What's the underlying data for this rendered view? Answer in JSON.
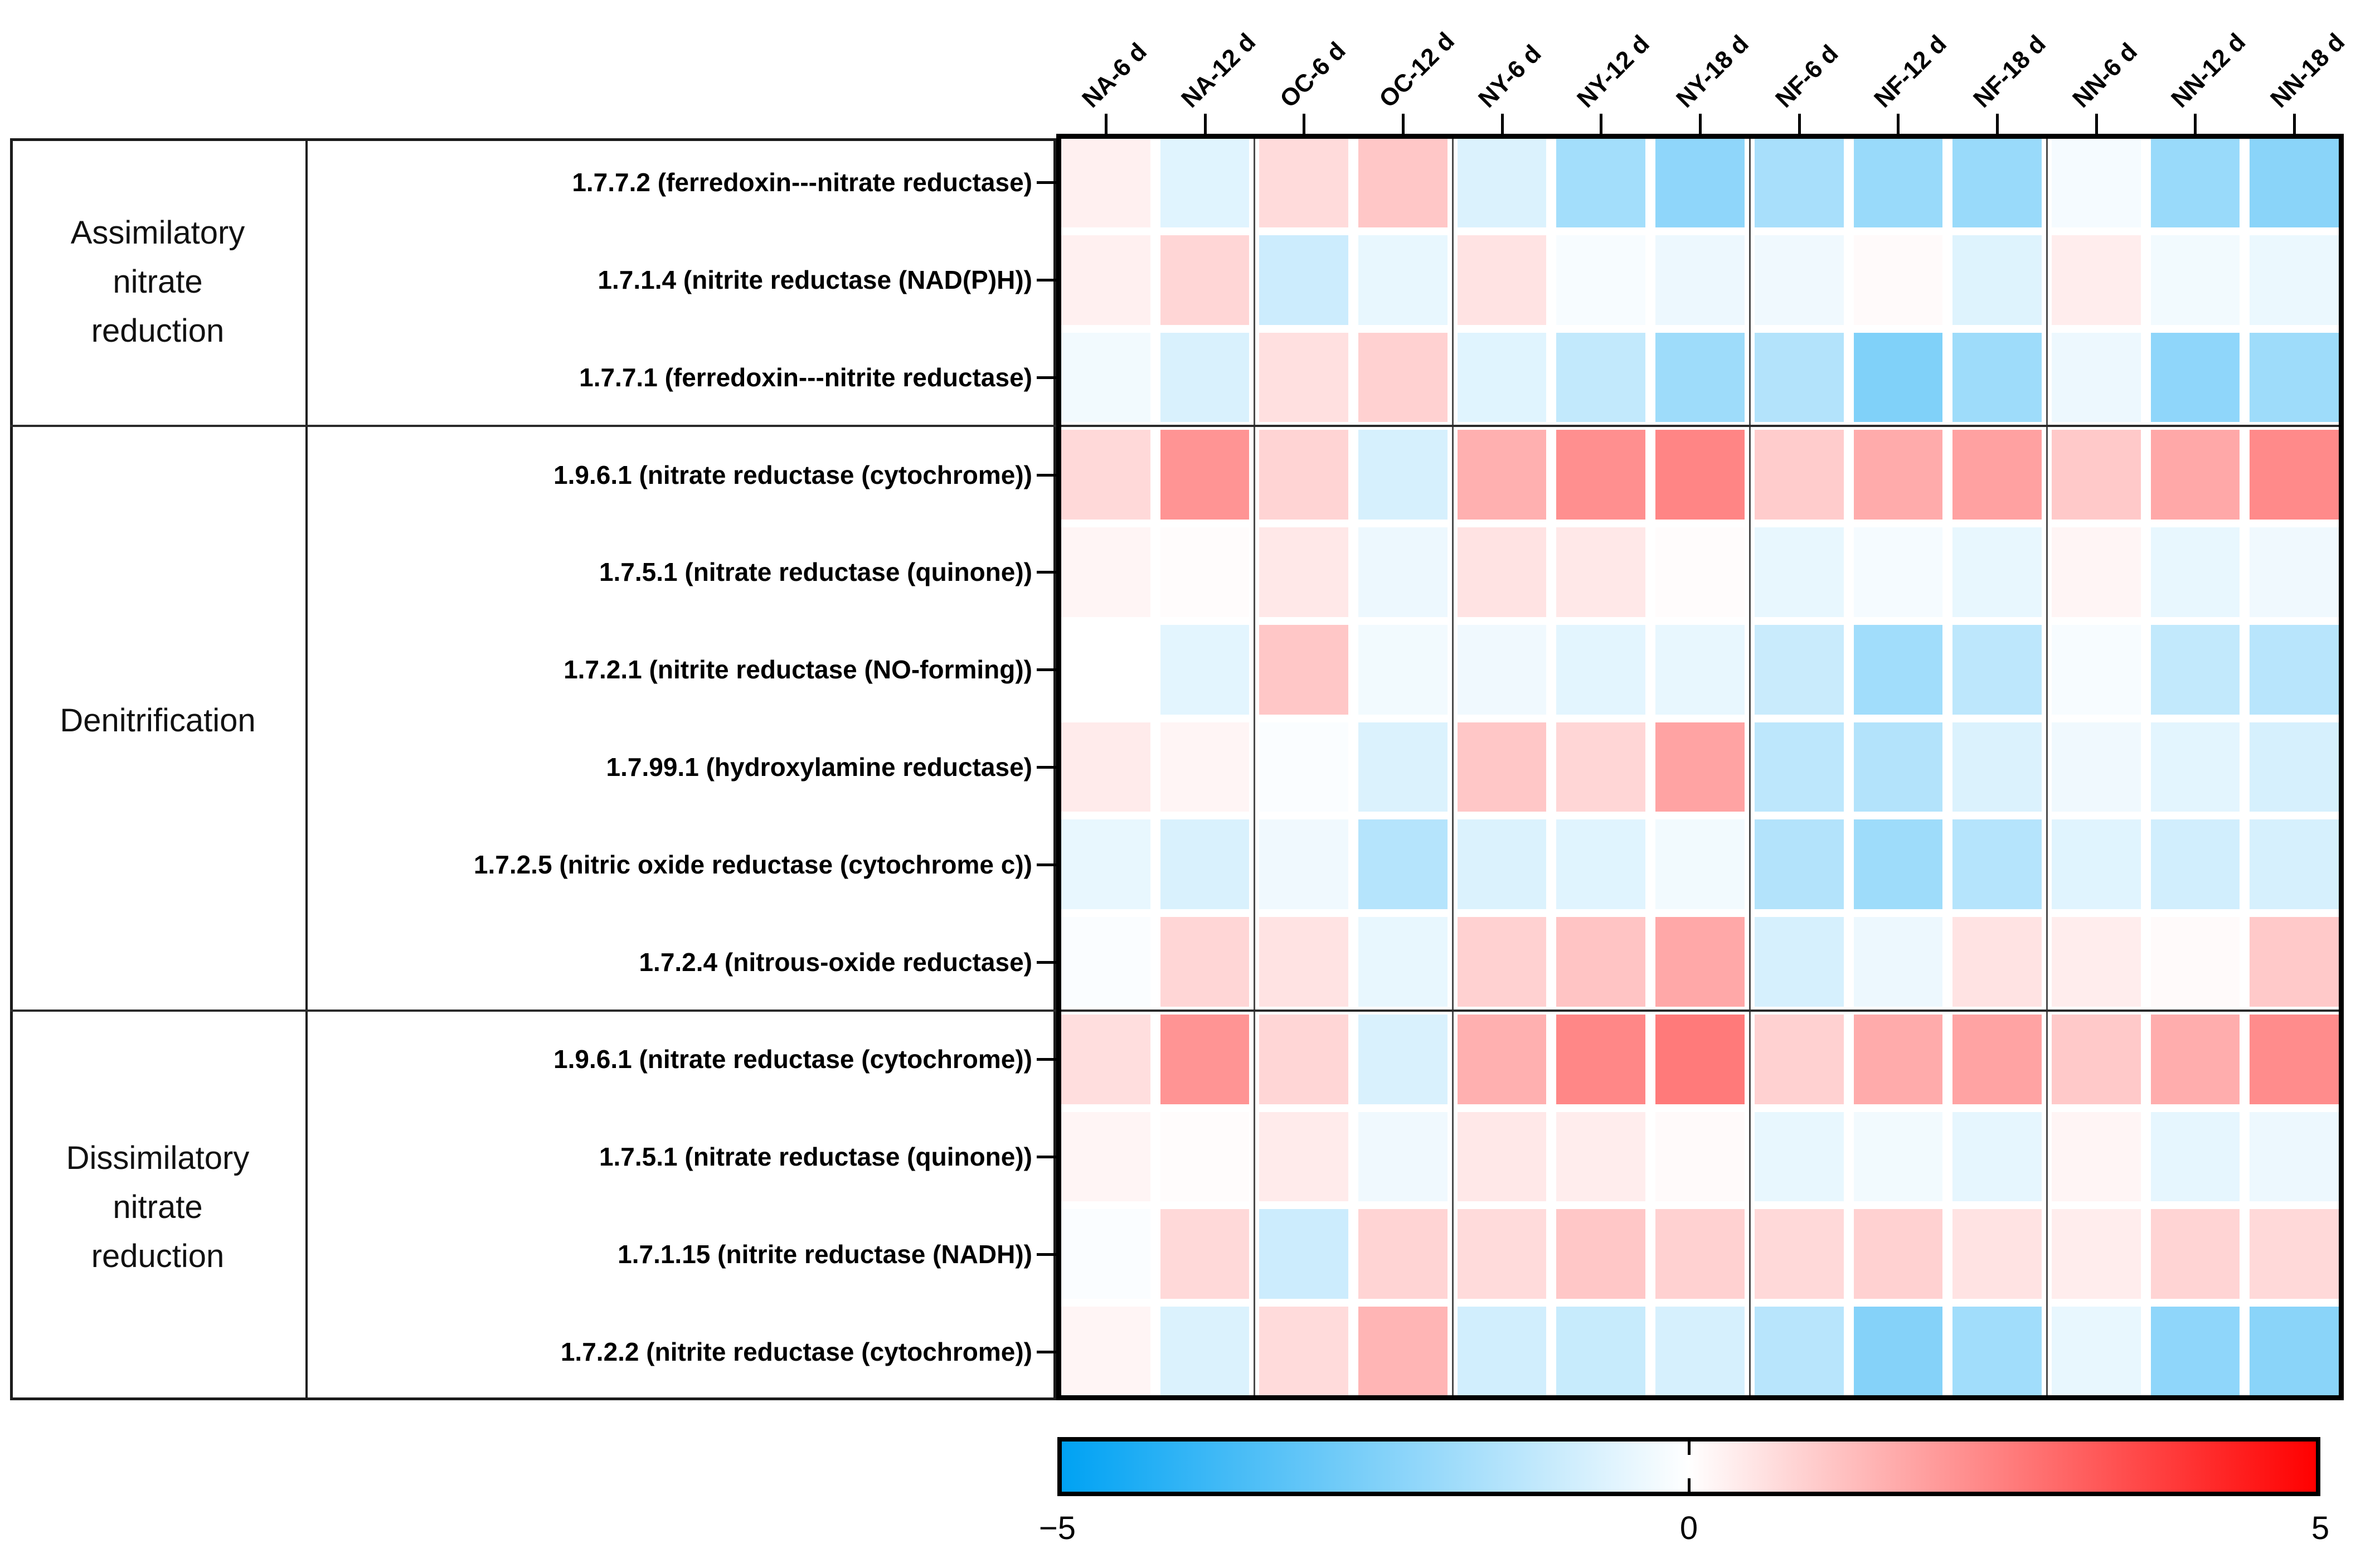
{
  "chart_data": {
    "type": "heatmap",
    "title": "",
    "columns": [
      "NA-6 d",
      "NA-12 d",
      "OC-6 d",
      "OC-12 d",
      "NY-6 d",
      "NY-12 d",
      "NY-18 d",
      "NF-6 d",
      "NF-12 d",
      "NF-18 d",
      "NN-6 d",
      "NN-12 d",
      "NN-18 d"
    ],
    "column_group_separators_after": [
      2,
      4,
      7,
      10
    ],
    "row_groups": [
      {
        "label": "Assimilatory nitrate reduction",
        "rows": [
          {
            "label": "1.7.7.2 (ferredoxin---nitrate reductase)",
            "values": [
              0.3,
              -0.6,
              0.7,
              1.1,
              -0.7,
              -1.8,
              -2.2,
              -1.7,
              -2.0,
              -2.0,
              -0.2,
              -2.0,
              -2.3
            ]
          },
          {
            "label": "1.7.1.4 (nitrite reductase (NAD(P)H))",
            "values": [
              0.3,
              0.8,
              -1.0,
              -0.45,
              0.55,
              -0.15,
              -0.35,
              -0.3,
              0.1,
              -0.65,
              0.35,
              -0.25,
              -0.4
            ]
          },
          {
            "label": "1.7.7.1 (ferredoxin---nitrite reductase)",
            "values": [
              -0.25,
              -0.75,
              0.6,
              0.9,
              -0.6,
              -1.2,
              -1.9,
              -1.5,
              -2.5,
              -1.9,
              -0.35,
              -2.2,
              -1.9
            ]
          }
        ]
      },
      {
        "label": "Denitrification",
        "rows": [
          {
            "label": "1.9.6.1 (nitrate reductase (cytochrome))",
            "values": [
              0.75,
              2.1,
              0.85,
              -0.8,
              1.55,
              2.2,
              2.4,
              1.0,
              1.65,
              1.85,
              1.05,
              1.7,
              2.3
            ]
          },
          {
            "label": "1.7.5.1 (nitrate reductase (quinone))",
            "values": [
              0.2,
              0.05,
              0.45,
              -0.35,
              0.55,
              0.45,
              0.05,
              -0.45,
              -0.2,
              -0.45,
              0.2,
              -0.45,
              -0.3
            ]
          },
          {
            "label": "1.7.2.1 (nitrite reductase (NO-forming))",
            "values": [
              0.0,
              -0.55,
              1.1,
              -0.25,
              -0.3,
              -0.55,
              -0.45,
              -1.05,
              -1.85,
              -1.3,
              -0.15,
              -1.2,
              -1.4
            ]
          },
          {
            "label": "1.7.99.1 (hydroxylamine reductase)",
            "values": [
              0.4,
              0.2,
              -0.1,
              -0.7,
              1.1,
              0.8,
              1.8,
              -1.3,
              -1.5,
              -0.7,
              -0.3,
              -0.55,
              -0.8
            ]
          },
          {
            "label": "1.7.2.5 (nitric oxide reductase (cytochrome c))",
            "values": [
              -0.45,
              -0.75,
              -0.3,
              -1.45,
              -0.7,
              -0.6,
              -0.25,
              -1.5,
              -1.9,
              -1.45,
              -0.6,
              -0.9,
              -0.8
            ]
          },
          {
            "label": "1.7.2.4 (nitrous-oxide reductase)",
            "values": [
              -0.1,
              0.8,
              0.55,
              -0.45,
              0.9,
              1.15,
              1.7,
              -0.8,
              -0.35,
              0.55,
              0.35,
              0.1,
              1.05
            ]
          }
        ]
      },
      {
        "label": "Dissimilatory nitrate reduction",
        "rows": [
          {
            "label": "1.9.6.1 (nitrate reductase (cytochrome))",
            "values": [
              0.65,
              2.1,
              0.8,
              -0.75,
              1.55,
              2.35,
              2.6,
              0.9,
              1.65,
              1.8,
              1.05,
              1.6,
              2.25
            ]
          },
          {
            "label": "1.7.5.1 (nitrate reductase (quinone))",
            "values": [
              0.2,
              0.05,
              0.4,
              -0.3,
              0.45,
              0.35,
              0.1,
              -0.45,
              -0.25,
              -0.5,
              0.2,
              -0.5,
              -0.35
            ]
          },
          {
            "label": "1.7.1.15 (nitrite reductase (NADH))",
            "values": [
              -0.1,
              0.75,
              -1.0,
              0.85,
              0.7,
              1.1,
              0.9,
              0.75,
              0.9,
              0.55,
              0.35,
              0.85,
              0.75
            ]
          },
          {
            "label": "1.7.2.2 (nitrite reductase (cytochrome))",
            "values": [
              0.2,
              -0.7,
              0.7,
              1.45,
              -0.9,
              -1.1,
              -0.8,
              -1.4,
              -2.4,
              -1.85,
              -0.45,
              -2.2,
              -2.3
            ]
          }
        ]
      }
    ],
    "colorbar": {
      "min": -5,
      "mid": 0,
      "max": 5,
      "tick_labels": [
        "−5",
        "0",
        "5"
      ],
      "min_color": "#00a2f3",
      "mid_color": "#ffffff",
      "max_color": "#ff0000"
    },
    "legend_position": "bottom",
    "grid": false
  }
}
